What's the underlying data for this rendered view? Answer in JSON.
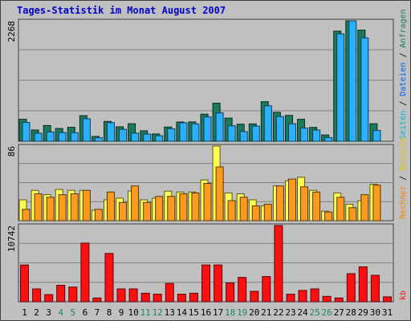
{
  "chart_data": [
    {
      "type": "bar",
      "title": "Tages-Statistik im Monat August 2007",
      "categories": [
        "1",
        "2",
        "3",
        "4",
        "5",
        "6",
        "7",
        "8",
        "9",
        "10",
        "11",
        "12",
        "13",
        "14",
        "15",
        "16",
        "17",
        "18",
        "19",
        "20",
        "21",
        "22",
        "23",
        "24",
        "25",
        "26",
        "27",
        "28",
        "29",
        "30",
        "31"
      ],
      "weekend_days": [
        "4",
        "5",
        "11",
        "12",
        "18",
        "19",
        "25",
        "26"
      ],
      "ymax_label": "2268",
      "ylim": [
        0,
        2268
      ],
      "right_label": [
        "Anfragen",
        " / ",
        "Dateien",
        " / ",
        "Seiten"
      ],
      "series": [
        {
          "name": "Anfragen",
          "color": "#1a7a5c",
          "values": [
            415,
            212,
            297,
            240,
            263,
            483,
            90,
            374,
            272,
            330,
            197,
            138,
            268,
            363,
            364,
            510,
            717,
            436,
            320,
            326,
            746,
            545,
            487,
            414,
            262,
            118,
            2074,
            2268,
            2094,
            330,
            0
          ]
        },
        {
          "name": "Dateien",
          "color": "#2ab0ff",
          "values": [
            355,
            151,
            176,
            164,
            162,
            423,
            67,
            351,
            225,
            152,
            135,
            104,
            235,
            348,
            326,
            458,
            533,
            290,
            182,
            284,
            669,
            466,
            330,
            248,
            212,
            69,
            2023,
            2268,
            1947,
            203,
            0
          ]
        }
      ]
    },
    {
      "type": "bar",
      "ymax_label": "86",
      "ylim": [
        0,
        86
      ],
      "right_label": [
        "Besuche",
        " / ",
        "Rechner"
      ],
      "series": [
        {
          "name": "Besuche",
          "color": "#ffff50",
          "values": [
            24,
            35,
            30,
            36,
            35,
            35,
            12,
            24,
            26,
            34,
            24,
            26,
            34,
            33,
            33,
            47,
            86,
            32,
            31,
            24,
            17,
            40,
            46,
            50,
            35,
            11,
            32,
            19,
            23,
            42,
            0
          ]
        },
        {
          "name": "Rechner",
          "color": "#ff9a20",
          "values": [
            13,
            31,
            27,
            30,
            31,
            35,
            13,
            33,
            21,
            40,
            21,
            28,
            28,
            31,
            32,
            43,
            62,
            23,
            27,
            17,
            19,
            40,
            48,
            39,
            33,
            10,
            27,
            15,
            30,
            41,
            0
          ]
        }
      ]
    },
    {
      "type": "bar",
      "ymax_label": "10742",
      "ylim": [
        0,
        10742
      ],
      "right_label": [
        "kb"
      ],
      "series": [
        {
          "name": "kb",
          "color": "#ff1010",
          "values": [
            5178,
            1805,
            1009,
            2318,
            2069,
            8263,
            531,
            6809,
            1805,
            1805,
            1194,
            1061,
            2580,
            1061,
            1194,
            5178,
            5178,
            2646,
            3422,
            1469,
            3555,
            10742,
            1061,
            1592,
            1805,
            752,
            531,
            3962,
            4914,
            3736,
            690
          ]
        }
      ]
    }
  ]
}
